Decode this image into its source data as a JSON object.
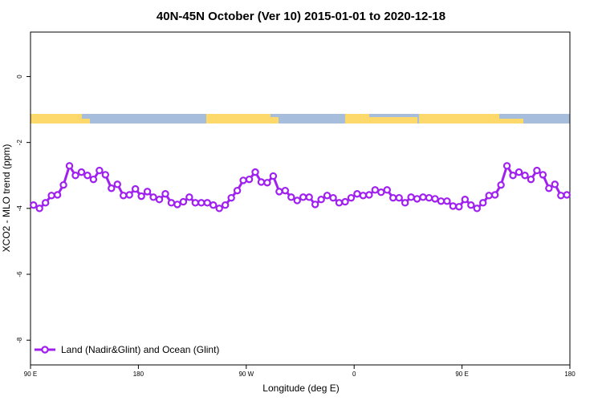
{
  "chart_data": {
    "type": "line",
    "title": "40N-45N October (Ver 10)   2015-01-01 to 2020-12-18",
    "xlabel": "Longitude (deg E)",
    "ylabel": "XCO2 - MLO trend (ppm)",
    "xlim": [
      90,
      540
    ],
    "ylim": [
      -8.75,
      1.35
    ],
    "xticks": [
      {
        "value": 90,
        "label": "90 E"
      },
      180,
      {
        "value": 270,
        "label": "90 W"
      },
      {
        "value": 360,
        "label": "0"
      },
      {
        "value": 450,
        "label": "90 E"
      },
      {
        "value": 540,
        "label": "180"
      }
    ],
    "yticks": [
      0,
      -2,
      -4,
      -6,
      -8
    ],
    "legend": "bottom-left",
    "x": [
      92.5,
      97.5,
      102.5,
      107.5,
      112.5,
      117.5,
      122.5,
      127.5,
      132.5,
      137.5,
      142.5,
      147.5,
      152.5,
      157.5,
      162.5,
      167.5,
      172.5,
      177.5,
      182.5,
      187.5,
      192.5,
      197.5,
      202.5,
      207.5,
      212.5,
      217.5,
      222.5,
      227.5,
      232.5,
      237.5,
      242.5,
      247.5,
      252.5,
      257.5,
      262.5,
      267.5,
      272.5,
      277.5,
      282.5,
      287.5,
      292.5,
      297.5,
      302.5,
      307.5,
      312.5,
      317.5,
      322.5,
      327.5,
      332.5,
      337.5,
      342.5,
      347.5,
      352.5,
      357.5,
      362.5,
      367.5,
      372.5,
      377.5,
      382.5,
      387.5,
      392.5,
      397.5,
      402.5,
      407.5,
      412.5,
      417.5,
      422.5,
      427.5,
      432.5,
      437.5,
      442.5,
      447.5,
      452.5,
      457.5,
      462.5,
      467.5,
      472.5,
      477.5,
      482.5,
      487.5,
      492.5,
      497.5,
      502.5,
      507.5,
      512.5,
      517.5,
      522.5,
      527.5,
      532.5,
      537.5
    ],
    "series": [
      {
        "name": "Land (Nadir&Glint) and Ocean (Glint)",
        "color": "#a020f0",
        "values": [
          -3.9,
          -4.0,
          -3.83,
          -3.61,
          -3.59,
          -3.29,
          -2.71,
          -3.0,
          -2.9,
          -3.0,
          -3.12,
          -2.85,
          -2.98,
          -3.39,
          -3.27,
          -3.61,
          -3.59,
          -3.41,
          -3.63,
          -3.49,
          -3.66,
          -3.73,
          -3.56,
          -3.83,
          -3.88,
          -3.8,
          -3.66,
          -3.83,
          -3.83,
          -3.83,
          -3.9,
          -4.0,
          -3.9,
          -3.68,
          -3.46,
          -3.15,
          -3.12,
          -2.9,
          -3.2,
          -3.22,
          -3.02,
          -3.49,
          -3.46,
          -3.66,
          -3.76,
          -3.66,
          -3.66,
          -3.88,
          -3.73,
          -3.61,
          -3.68,
          -3.83,
          -3.8,
          -3.68,
          -3.56,
          -3.61,
          -3.59,
          -3.44,
          -3.51,
          -3.44,
          -3.68,
          -3.68,
          -3.83,
          -3.66,
          -3.71,
          -3.66,
          -3.68,
          -3.71,
          -3.78,
          -3.78,
          -3.93,
          -3.95,
          -3.73,
          -3.9,
          -4.0,
          -3.83,
          -3.61,
          -3.59,
          -3.29,
          -2.71,
          -3.0,
          -2.9,
          -3.0,
          -3.12,
          -2.85,
          -2.98,
          -3.39,
          -3.27,
          -3.61,
          -3.59
        ]
      }
    ]
  }
}
